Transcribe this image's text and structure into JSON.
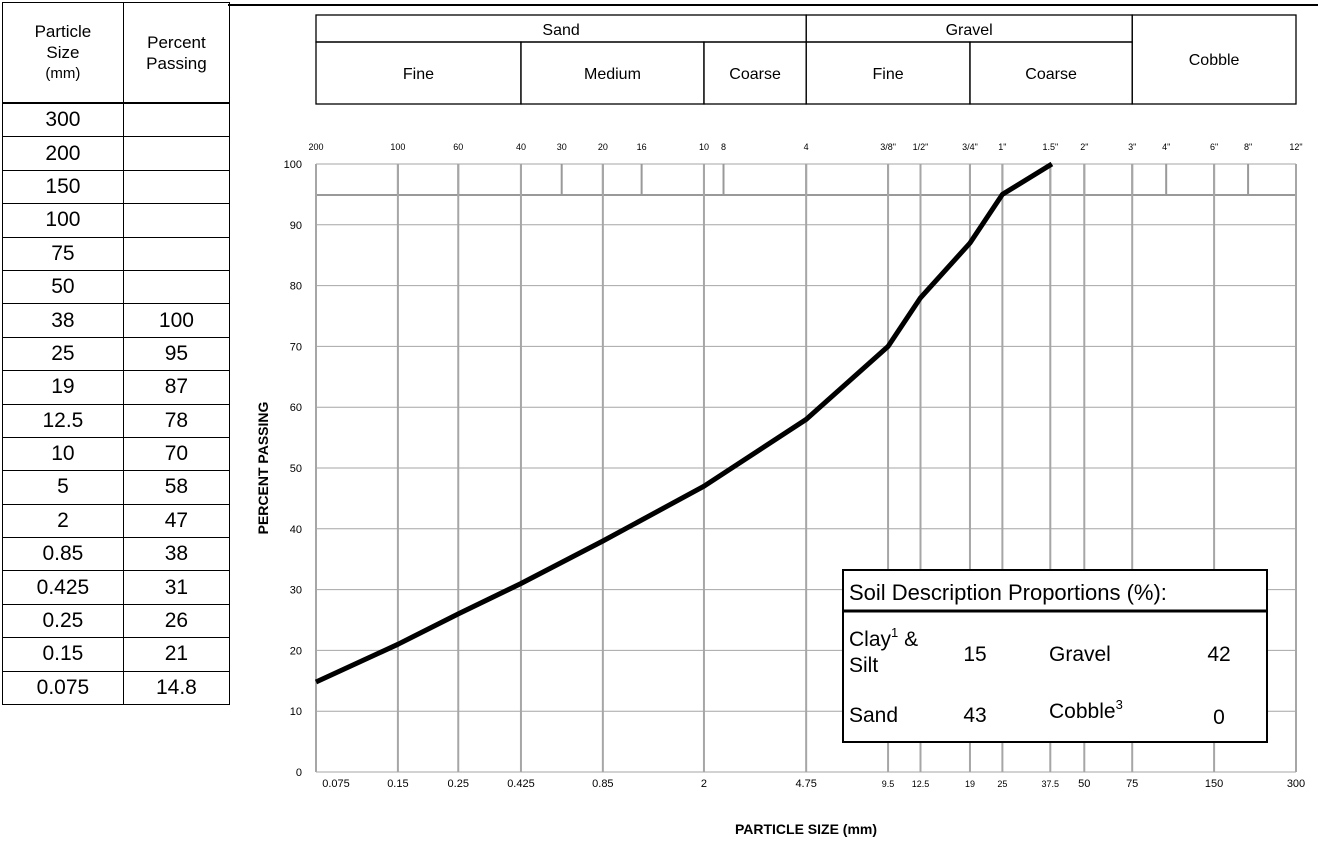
{
  "table": {
    "headers": {
      "size_line1": "Particle",
      "size_line2": "Size",
      "size_unit": "(mm)",
      "pass_line1": "Percent",
      "pass_line2": "Passing"
    },
    "rows": [
      {
        "size": "300",
        "pass": ""
      },
      {
        "size": "200",
        "pass": ""
      },
      {
        "size": "150",
        "pass": ""
      },
      {
        "size": "100",
        "pass": ""
      },
      {
        "size": "75",
        "pass": ""
      },
      {
        "size": "50",
        "pass": ""
      },
      {
        "size": "38",
        "pass": "100"
      },
      {
        "size": "25",
        "pass": "95"
      },
      {
        "size": "19",
        "pass": "87"
      },
      {
        "size": "12.5",
        "pass": "78"
      },
      {
        "size": "10",
        "pass": "70"
      },
      {
        "size": "5",
        "pass": "58"
      },
      {
        "size": "2",
        "pass": "47"
      },
      {
        "size": "0.85",
        "pass": "38"
      },
      {
        "size": "0.425",
        "pass": "31"
      },
      {
        "size": "0.25",
        "pass": "26"
      },
      {
        "size": "0.15",
        "pass": "21"
      },
      {
        "size": "0.075",
        "pass": "14.8"
      }
    ]
  },
  "classification": {
    "groups": [
      {
        "label": "Sand",
        "from": 0.075,
        "to": 4.75
      },
      {
        "label": "Gravel",
        "from": 4.75,
        "to": 75
      }
    ],
    "subgroups": [
      {
        "label": "Fine",
        "from": 0.075,
        "to": 0.425
      },
      {
        "label": "Medium",
        "from": 0.425,
        "to": 2
      },
      {
        "label": "Coarse",
        "from": 2,
        "to": 4.75
      },
      {
        "label": "Fine",
        "from": 4.75,
        "to": 19
      },
      {
        "label": "Coarse",
        "from": 19,
        "to": 75
      }
    ],
    "cobble": {
      "label": "Cobble",
      "from": 75,
      "to": 300
    }
  },
  "chart_data": {
    "type": "line",
    "xscale": "log",
    "xlim": [
      0.075,
      300
    ],
    "ylim": [
      0,
      100
    ],
    "xlabel": "PARTICLE SIZE (mm)",
    "ylabel": "PERCENT PASSING",
    "grid": true,
    "yticks": [
      0,
      10,
      20,
      30,
      40,
      50,
      60,
      70,
      80,
      90,
      100
    ],
    "xticks": [
      {
        "value": 0.075,
        "label": "0.075",
        "small": false
      },
      {
        "value": 0.15,
        "label": "0.15",
        "small": false
      },
      {
        "value": 0.25,
        "label": "0.25",
        "small": false
      },
      {
        "value": 0.425,
        "label": "0.425",
        "small": false
      },
      {
        "value": 0.85,
        "label": "0.85",
        "small": false
      },
      {
        "value": 2,
        "label": "2",
        "small": false
      },
      {
        "value": 4.75,
        "label": "4.75",
        "small": false
      },
      {
        "value": 9.5,
        "label": "9.5",
        "small": true
      },
      {
        "value": 12.5,
        "label": "12.5",
        "small": true
      },
      {
        "value": 19,
        "label": "19",
        "small": true
      },
      {
        "value": 25,
        "label": "25",
        "small": true
      },
      {
        "value": 37.5,
        "label": "37.5",
        "small": true
      },
      {
        "value": 50,
        "label": "50",
        "small": false
      },
      {
        "value": 75,
        "label": "75",
        "small": false
      },
      {
        "value": 150,
        "label": "150",
        "small": false
      },
      {
        "value": 300,
        "label": "300",
        "small": false
      }
    ],
    "sieves": [
      {
        "value": 0.075,
        "label": "200"
      },
      {
        "value": 0.15,
        "label": "100"
      },
      {
        "value": 0.25,
        "label": "60"
      },
      {
        "value": 0.425,
        "label": "40"
      },
      {
        "value": 0.6,
        "label": "30"
      },
      {
        "value": 0.85,
        "label": "20"
      },
      {
        "value": 1.18,
        "label": "16"
      },
      {
        "value": 2,
        "label": "10"
      },
      {
        "value": 2.36,
        "label": "8"
      },
      {
        "value": 4.75,
        "label": "4"
      },
      {
        "value": 9.5,
        "label": "3/8\""
      },
      {
        "value": 12.5,
        "label": "1/2\""
      },
      {
        "value": 19,
        "label": "3/4\""
      },
      {
        "value": 25,
        "label": "1\""
      },
      {
        "value": 37.5,
        "label": "1.5\""
      },
      {
        "value": 50,
        "label": "2\""
      },
      {
        "value": 75,
        "label": "3\""
      },
      {
        "value": 100,
        "label": "4\""
      },
      {
        "value": 150,
        "label": "6\""
      },
      {
        "value": 200,
        "label": "8\""
      },
      {
        "value": 300,
        "label": "12\""
      }
    ],
    "series": [
      {
        "x": [
          0.075,
          0.15,
          0.25,
          0.425,
          0.85,
          2,
          4.75,
          9.5,
          12.5,
          19,
          25,
          38
        ],
        "y": [
          14.8,
          21,
          26,
          31,
          38,
          47,
          58,
          70,
          78,
          87,
          95,
          100
        ]
      }
    ]
  },
  "proportions": {
    "title": "Soil Description Proportions (%):",
    "clay_label": "Clay",
    "clay_sup": "1",
    "clay_amp": " &",
    "silt_label": "Silt",
    "clay_silt_value": "15",
    "gravel_label": "Gravel",
    "gravel_value": "42",
    "sand_label": "Sand",
    "sand_value": "43",
    "cobble_label": "Cobble",
    "cobble_sup": "3",
    "cobble_value": "0"
  }
}
